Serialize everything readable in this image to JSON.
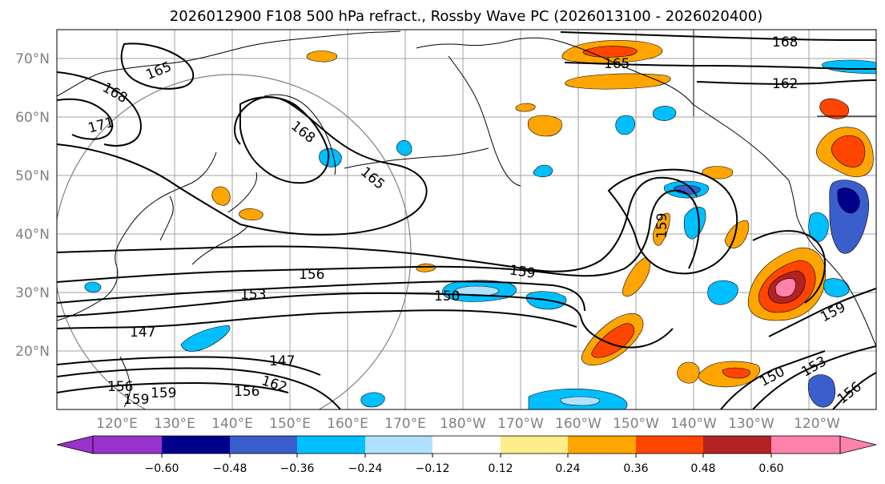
{
  "title": "2026012900 F108 500 hPa refract., Rossby Wave PC (2026013100 - 2026020400)",
  "map": {
    "lat_labels": [
      "70°N",
      "60°N",
      "50°N",
      "40°N",
      "30°N",
      "20°N"
    ],
    "lon_labels": [
      "120°E",
      "130°E",
      "140°E",
      "150°E",
      "160°E",
      "170°E",
      "180°W",
      "170°W",
      "160°W",
      "150°W",
      "140°W",
      "130°W",
      "120°W"
    ],
    "contour_labels": [
      "165",
      "168",
      "171",
      "168",
      "165",
      "168",
      "165",
      "162",
      "156",
      "153",
      "150",
      "159",
      "147",
      "147",
      "159",
      "150",
      "153",
      "156",
      "156",
      "162",
      "159",
      "156",
      "159",
      "159"
    ],
    "colors": {
      "coast": "#000000",
      "grid": "#a0a0a0",
      "contour": "#000000",
      "circle": "#808080",
      "purple": "#9932cc",
      "navy": "#00008b",
      "royal_blue": "#3a5fcd",
      "deep_sky_blue": "#00bfff",
      "light_sky_blue": "#b0e2ff",
      "white": "#ffffff",
      "light_yellow": "#ffec8b",
      "orange": "#ffa500",
      "orange_red": "#ff4500",
      "firebrick": "#b22222",
      "pink": "#ff82ab"
    }
  },
  "colorbar": {
    "ticks": [
      "−0.60",
      "−0.48",
      "−0.36",
      "−0.24",
      "−0.12",
      "0.12",
      "0.24",
      "0.36",
      "0.48",
      "0.60"
    ],
    "colors": [
      "#9932cc",
      "#00008b",
      "#3a5fcd",
      "#00bfff",
      "#b0e2ff",
      "#ffffff",
      "#ffec8b",
      "#ffa500",
      "#ff4500",
      "#b22222",
      "#ff82ab"
    ]
  }
}
